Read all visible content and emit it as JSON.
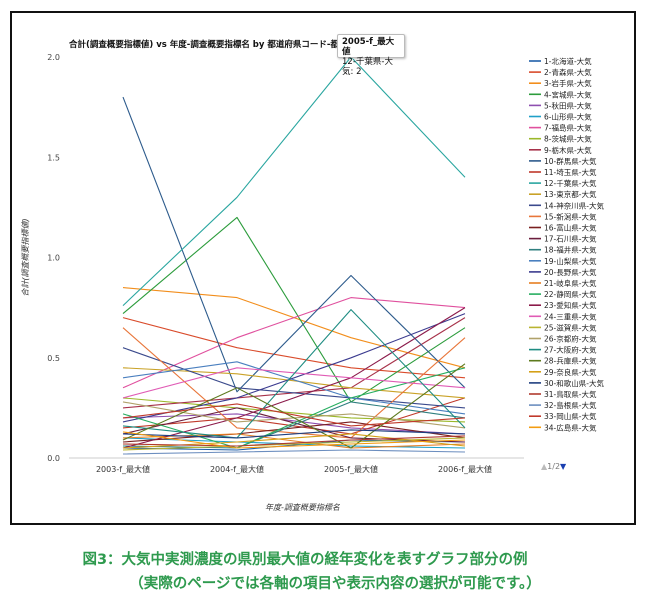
{
  "chart_data": {
    "type": "line",
    "title": "合計(調査概要指標値) vs 年度-調査概要指標名 by 都道府県コード-都道府県-媒(",
    "xlabel": "年度-調査概要指標名",
    "ylabel": "合計(調査概要指標値)",
    "categories": [
      "2003-f_最大値",
      "2004-f_最大値",
      "2005-f_最大値",
      "2006-f_最大値"
    ],
    "yticks": [
      "0.0",
      "0.5",
      "1.0",
      "1.5",
      "2.0"
    ],
    "ylim": [
      0,
      2
    ],
    "grid": false,
    "legend_position": "right",
    "series": [
      {
        "name": "1-北海道-大気",
        "color": "#1f5fa8",
        "values": [
          0.05,
          0.04,
          0.09,
          0.08
        ]
      },
      {
        "name": "2-青森県-大気",
        "color": "#d94b2b",
        "values": [
          0.7,
          0.55,
          0.45,
          0.4
        ]
      },
      {
        "name": "3-岩手県-大気",
        "color": "#f28e1c",
        "values": [
          0.85,
          0.8,
          0.6,
          0.45
        ]
      },
      {
        "name": "4-宮城県-大気",
        "color": "#2c9c3c",
        "values": [
          0.72,
          1.2,
          0.28,
          0.65
        ]
      },
      {
        "name": "5-秋田県-大気",
        "color": "#8e4fb0",
        "values": [
          0.2,
          0.22,
          0.15,
          0.12
        ]
      },
      {
        "name": "6-山形県-大気",
        "color": "#1fa0c8",
        "values": [
          0.1,
          0.08,
          0.06,
          0.05
        ]
      },
      {
        "name": "7-福島県-大気",
        "color": "#e0509e",
        "values": [
          0.35,
          0.6,
          0.8,
          0.75
        ]
      },
      {
        "name": "8-茨城県-大気",
        "color": "#9bb82a",
        "values": [
          0.3,
          0.25,
          0.2,
          0.18
        ]
      },
      {
        "name": "9-栃木県-大気",
        "color": "#a7324a",
        "values": [
          0.25,
          0.3,
          0.35,
          0.7
        ]
      },
      {
        "name": "10-群馬県-大気",
        "color": "#2d5b8c",
        "values": [
          1.8,
          0.33,
          0.91,
          0.35
        ]
      },
      {
        "name": "11-埼玉県-大気",
        "color": "#c0392b",
        "values": [
          0.15,
          0.2,
          0.12,
          0.3
        ]
      },
      {
        "name": "12-千葉県-大気",
        "color": "#2aa6a0",
        "values": [
          0.76,
          1.3,
          2.0,
          1.4
        ]
      },
      {
        "name": "13-東京都-大気",
        "color": "#c9a227",
        "values": [
          0.45,
          0.42,
          0.35,
          0.3
        ]
      },
      {
        "name": "14-神奈川県-大気",
        "color": "#3b4a8c",
        "values": [
          0.55,
          0.35,
          0.3,
          0.25
        ]
      },
      {
        "name": "15-新潟県-大気",
        "color": "#e8763a",
        "values": [
          0.65,
          0.15,
          0.1,
          0.6
        ]
      },
      {
        "name": "16-富山県-大気",
        "color": "#7a1f1f",
        "values": [
          0.08,
          0.12,
          0.18,
          0.1
        ]
      },
      {
        "name": "17-石川県-大気",
        "color": "#6b1e3e",
        "values": [
          0.12,
          0.25,
          0.1,
          0.08
        ]
      },
      {
        "name": "18-福井県-大気",
        "color": "#2f7f7f",
        "values": [
          0.06,
          0.05,
          0.28,
          0.2
        ]
      },
      {
        "name": "19-山梨県-大気",
        "color": "#4a7fbf",
        "values": [
          0.4,
          0.48,
          0.3,
          0.22
        ]
      },
      {
        "name": "20-長野県-大気",
        "color": "#3b3b8f",
        "values": [
          0.18,
          0.3,
          0.5,
          0.72
        ]
      },
      {
        "name": "21-岐阜県-大気",
        "color": "#e67e22",
        "values": [
          0.1,
          0.12,
          0.05,
          0.07
        ]
      },
      {
        "name": "22-静岡県-大気",
        "color": "#27ae60",
        "values": [
          0.22,
          0.05,
          0.3,
          0.45
        ]
      },
      {
        "name": "23-愛知県-大気",
        "color": "#8b1a4a",
        "values": [
          0.05,
          0.2,
          0.4,
          0.75
        ]
      },
      {
        "name": "24-三重県-大気",
        "color": "#e05bb5",
        "values": [
          0.3,
          0.45,
          0.4,
          0.35
        ]
      },
      {
        "name": "25-滋賀県-大気",
        "color": "#b9b431",
        "values": [
          0.04,
          0.06,
          0.08,
          0.1
        ]
      },
      {
        "name": "26-京都府-大気",
        "color": "#b0a26a",
        "values": [
          0.28,
          0.18,
          0.22,
          0.15
        ]
      },
      {
        "name": "27-大阪府-大気",
        "color": "#1e8c82",
        "values": [
          0.16,
          0.1,
          0.74,
          0.15
        ]
      },
      {
        "name": "28-兵庫県-大気",
        "color": "#5d7a1e",
        "values": [
          0.09,
          0.35,
          0.05,
          0.47
        ]
      },
      {
        "name": "29-奈良県-大気",
        "color": "#d4a017",
        "values": [
          0.05,
          0.08,
          0.12,
          0.06
        ]
      },
      {
        "name": "30-和歌山県-大気",
        "color": "#1f3f7f",
        "values": [
          0.12,
          0.1,
          0.14,
          0.12
        ]
      },
      {
        "name": "31-鳥取県-大気",
        "color": "#b03a2e",
        "values": [
          0.07,
          0.06,
          0.09,
          0.11
        ]
      },
      {
        "name": "32-島根県-大気",
        "color": "#6c8ebf",
        "values": [
          0.02,
          0.03,
          0.04,
          0.03
        ]
      },
      {
        "name": "33-岡山県-大気",
        "color": "#c0392b",
        "values": [
          0.2,
          0.27,
          0.16,
          0.2
        ]
      },
      {
        "name": "34-広島県-大気",
        "color": "#f39c12",
        "values": [
          0.13,
          0.05,
          0.07,
          0.09
        ]
      }
    ],
    "tooltip": {
      "line1": "2005-f_最大値",
      "line2": "12-千葉県-大気: 2"
    },
    "pager": "1/2"
  },
  "caption": {
    "line1": "図3：大気中実測濃度の県別最大値の経年変化を表すグラフ部分の例",
    "line2": "（実際のページでは各軸の項目や表示内容の選択が可能です。）"
  }
}
